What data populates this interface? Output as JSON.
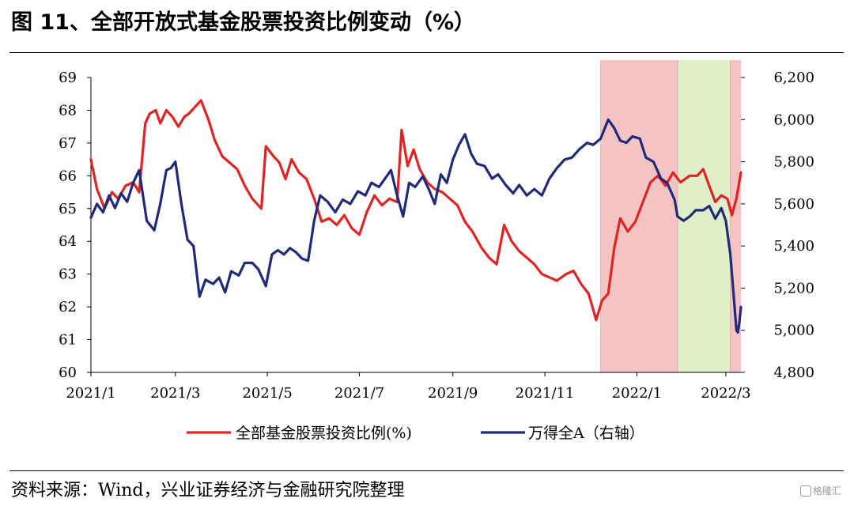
{
  "title": "图 11、全部开放式基金股票投资比例变动（%）",
  "source": "资料来源：Wind，兴业证券经济与金融研究院整理",
  "watermark": "格隆汇",
  "chart_data": {
    "type": "line",
    "x_tick_labels": [
      "2021/1",
      "2021/3",
      "2021/5",
      "2021/7",
      "2021/9",
      "2021/11",
      "2022/1",
      "2022/3"
    ],
    "x_tick_dates": [
      "2021-01-04",
      "2021-03-01",
      "2021-05-01",
      "2021-07-01",
      "2021-09-01",
      "2021-11-01",
      "2022-01-01",
      "2022-03-01"
    ],
    "x_range": [
      "2021-01-04",
      "2022-03-11"
    ],
    "y_left": {
      "min": 60,
      "max": 69,
      "step": 1,
      "ticks": [
        "60",
        "61",
        "62",
        "63",
        "64",
        "65",
        "66",
        "67",
        "68",
        "69"
      ]
    },
    "y_right": {
      "min": 4800,
      "max": 6200,
      "step": 200,
      "ticks": [
        "4,800",
        "5,000",
        "5,200",
        "5,400",
        "5,600",
        "5,800",
        "6,000",
        "6,200"
      ]
    },
    "shaded_periods": [
      {
        "start": "2021-12-08",
        "end": "2022-01-28",
        "color": "#f4c4c4"
      },
      {
        "start": "2022-01-28",
        "end": "2022-03-04",
        "color": "#dff0c8"
      },
      {
        "start": "2022-03-04",
        "end": "2022-03-11",
        "color": "#f4c4c4"
      }
    ],
    "series": [
      {
        "name": "全部基金股票投资比例(%)",
        "axis": "left",
        "color": "#e02424",
        "points": [
          [
            "2021-01-04",
            66.5
          ],
          [
            "2021-01-08",
            65.6
          ],
          [
            "2021-01-13",
            65.0
          ],
          [
            "2021-01-18",
            65.5
          ],
          [
            "2021-01-22",
            65.3
          ],
          [
            "2021-01-27",
            65.7
          ],
          [
            "2021-02-01",
            65.8
          ],
          [
            "2021-02-05",
            65.5
          ],
          [
            "2021-02-09",
            67.6
          ],
          [
            "2021-02-12",
            67.9
          ],
          [
            "2021-02-16",
            68.0
          ],
          [
            "2021-02-19",
            67.6
          ],
          [
            "2021-02-23",
            68.0
          ],
          [
            "2021-02-27",
            67.8
          ],
          [
            "2021-03-03",
            67.5
          ],
          [
            "2021-03-07",
            67.8
          ],
          [
            "2021-03-10",
            67.9
          ],
          [
            "2021-03-14",
            68.1
          ],
          [
            "2021-03-18",
            68.3
          ],
          [
            "2021-03-23",
            67.7
          ],
          [
            "2021-03-27",
            67.1
          ],
          [
            "2021-04-01",
            66.6
          ],
          [
            "2021-04-06",
            66.4
          ],
          [
            "2021-04-11",
            66.2
          ],
          [
            "2021-04-16",
            65.7
          ],
          [
            "2021-04-21",
            65.3
          ],
          [
            "2021-04-27",
            65.0
          ],
          [
            "2021-04-30",
            66.9
          ],
          [
            "2021-05-05",
            66.6
          ],
          [
            "2021-05-09",
            66.4
          ],
          [
            "2021-05-13",
            65.9
          ],
          [
            "2021-05-17",
            66.5
          ],
          [
            "2021-05-22",
            66.1
          ],
          [
            "2021-05-27",
            65.9
          ],
          [
            "2021-06-01",
            65.3
          ],
          [
            "2021-06-06",
            64.6
          ],
          [
            "2021-06-11",
            64.7
          ],
          [
            "2021-06-16",
            64.5
          ],
          [
            "2021-06-21",
            64.8
          ],
          [
            "2021-06-26",
            64.4
          ],
          [
            "2021-07-01",
            64.2
          ],
          [
            "2021-07-06",
            64.9
          ],
          [
            "2021-07-11",
            65.4
          ],
          [
            "2021-07-16",
            65.1
          ],
          [
            "2021-07-21",
            65.3
          ],
          [
            "2021-07-26",
            65.2
          ],
          [
            "2021-07-29",
            67.4
          ],
          [
            "2021-08-02",
            66.3
          ],
          [
            "2021-08-06",
            66.8
          ],
          [
            "2021-08-10",
            66.2
          ],
          [
            "2021-08-15",
            65.8
          ],
          [
            "2021-08-20",
            65.6
          ],
          [
            "2021-08-25",
            65.5
          ],
          [
            "2021-08-30",
            65.3
          ],
          [
            "2021-09-04",
            65.1
          ],
          [
            "2021-09-09",
            64.6
          ],
          [
            "2021-09-14",
            64.3
          ],
          [
            "2021-09-20",
            63.8
          ],
          [
            "2021-09-25",
            63.5
          ],
          [
            "2021-09-30",
            63.3
          ],
          [
            "2021-10-05",
            64.5
          ],
          [
            "2021-10-10",
            64.0
          ],
          [
            "2021-10-15",
            63.7
          ],
          [
            "2021-10-20",
            63.5
          ],
          [
            "2021-10-25",
            63.3
          ],
          [
            "2021-10-30",
            63.0
          ],
          [
            "2021-11-04",
            62.9
          ],
          [
            "2021-11-09",
            62.8
          ],
          [
            "2021-11-15",
            63.0
          ],
          [
            "2021-11-20",
            63.1
          ],
          [
            "2021-11-25",
            62.7
          ],
          [
            "2021-11-30",
            62.4
          ],
          [
            "2021-12-05",
            61.6
          ],
          [
            "2021-12-09",
            62.2
          ],
          [
            "2021-12-13",
            62.4
          ],
          [
            "2021-12-17",
            63.8
          ],
          [
            "2021-12-21",
            64.7
          ],
          [
            "2021-12-26",
            64.3
          ],
          [
            "2021-12-31",
            64.6
          ],
          [
            "2022-01-05",
            65.2
          ],
          [
            "2022-01-10",
            65.8
          ],
          [
            "2022-01-15",
            66.0
          ],
          [
            "2022-01-20",
            65.7
          ],
          [
            "2022-01-25",
            66.1
          ],
          [
            "2022-01-30",
            65.8
          ],
          [
            "2022-02-05",
            66.0
          ],
          [
            "2022-02-10",
            66.0
          ],
          [
            "2022-02-14",
            66.2
          ],
          [
            "2022-02-18",
            65.7
          ],
          [
            "2022-02-22",
            65.2
          ],
          [
            "2022-02-26",
            65.4
          ],
          [
            "2022-03-02",
            65.3
          ],
          [
            "2022-03-05",
            64.8
          ],
          [
            "2022-03-08",
            65.3
          ],
          [
            "2022-03-11",
            66.1
          ]
        ]
      },
      {
        "name": "万得全A（右轴）",
        "axis": "right",
        "color": "#1f2a7a",
        "points": [
          [
            "2021-01-04",
            5535
          ],
          [
            "2021-01-08",
            5600
          ],
          [
            "2021-01-12",
            5560
          ],
          [
            "2021-01-16",
            5640
          ],
          [
            "2021-01-20",
            5580
          ],
          [
            "2021-01-24",
            5650
          ],
          [
            "2021-01-28",
            5610
          ],
          [
            "2021-02-01",
            5700
          ],
          [
            "2021-02-05",
            5760
          ],
          [
            "2021-02-10",
            5520
          ],
          [
            "2021-02-15",
            5475
          ],
          [
            "2021-02-19",
            5600
          ],
          [
            "2021-02-23",
            5760
          ],
          [
            "2021-02-26",
            5770
          ],
          [
            "2021-03-01",
            5800
          ],
          [
            "2021-03-05",
            5600
          ],
          [
            "2021-03-09",
            5430
          ],
          [
            "2021-03-13",
            5400
          ],
          [
            "2021-03-17",
            5160
          ],
          [
            "2021-03-21",
            5240
          ],
          [
            "2021-03-26",
            5220
          ],
          [
            "2021-03-30",
            5250
          ],
          [
            "2021-04-03",
            5180
          ],
          [
            "2021-04-07",
            5280
          ],
          [
            "2021-04-12",
            5260
          ],
          [
            "2021-04-16",
            5320
          ],
          [
            "2021-04-21",
            5320
          ],
          [
            "2021-04-25",
            5290
          ],
          [
            "2021-04-30",
            5210
          ],
          [
            "2021-05-04",
            5360
          ],
          [
            "2021-05-08",
            5380
          ],
          [
            "2021-05-12",
            5360
          ],
          [
            "2021-05-16",
            5390
          ],
          [
            "2021-05-20",
            5370
          ],
          [
            "2021-05-24",
            5340
          ],
          [
            "2021-05-28",
            5330
          ],
          [
            "2021-06-01",
            5520
          ],
          [
            "2021-06-05",
            5640
          ],
          [
            "2021-06-10",
            5610
          ],
          [
            "2021-06-15",
            5560
          ],
          [
            "2021-06-20",
            5620
          ],
          [
            "2021-06-25",
            5600
          ],
          [
            "2021-06-30",
            5660
          ],
          [
            "2021-07-05",
            5640
          ],
          [
            "2021-07-09",
            5700
          ],
          [
            "2021-07-14",
            5680
          ],
          [
            "2021-07-18",
            5720
          ],
          [
            "2021-07-22",
            5760
          ],
          [
            "2021-07-26",
            5640
          ],
          [
            "2021-07-30",
            5540
          ],
          [
            "2021-08-03",
            5700
          ],
          [
            "2021-08-07",
            5680
          ],
          [
            "2021-08-12",
            5730
          ],
          [
            "2021-08-16",
            5670
          ],
          [
            "2021-08-20",
            5600
          ],
          [
            "2021-08-24",
            5740
          ],
          [
            "2021-08-28",
            5700
          ],
          [
            "2021-09-01",
            5810
          ],
          [
            "2021-09-05",
            5880
          ],
          [
            "2021-09-09",
            5930
          ],
          [
            "2021-09-13",
            5840
          ],
          [
            "2021-09-17",
            5790
          ],
          [
            "2021-09-22",
            5780
          ],
          [
            "2021-09-27",
            5720
          ],
          [
            "2021-10-01",
            5740
          ],
          [
            "2021-10-06",
            5690
          ],
          [
            "2021-10-11",
            5650
          ],
          [
            "2021-10-15",
            5690
          ],
          [
            "2021-10-20",
            5640
          ],
          [
            "2021-10-25",
            5670
          ],
          [
            "2021-10-30",
            5640
          ],
          [
            "2021-11-04",
            5720
          ],
          [
            "2021-11-09",
            5770
          ],
          [
            "2021-11-14",
            5810
          ],
          [
            "2021-11-19",
            5820
          ],
          [
            "2021-11-24",
            5860
          ],
          [
            "2021-11-29",
            5890
          ],
          [
            "2021-12-03",
            5880
          ],
          [
            "2021-12-08",
            5910
          ],
          [
            "2021-12-13",
            6000
          ],
          [
            "2021-12-17",
            5960
          ],
          [
            "2021-12-21",
            5900
          ],
          [
            "2021-12-25",
            5890
          ],
          [
            "2021-12-29",
            5920
          ],
          [
            "2022-01-03",
            5910
          ],
          [
            "2022-01-07",
            5820
          ],
          [
            "2022-01-12",
            5800
          ],
          [
            "2022-01-17",
            5720
          ],
          [
            "2022-01-21",
            5700
          ],
          [
            "2022-01-26",
            5620
          ],
          [
            "2022-01-28",
            5540
          ],
          [
            "2022-02-01",
            5520
          ],
          [
            "2022-02-05",
            5540
          ],
          [
            "2022-02-09",
            5570
          ],
          [
            "2022-02-14",
            5570
          ],
          [
            "2022-02-18",
            5590
          ],
          [
            "2022-02-22",
            5530
          ],
          [
            "2022-02-26",
            5580
          ],
          [
            "2022-03-01",
            5520
          ],
          [
            "2022-03-04",
            5360
          ],
          [
            "2022-03-06",
            5180
          ],
          [
            "2022-03-08",
            5000
          ],
          [
            "2022-03-09",
            4990
          ],
          [
            "2022-03-10",
            5040
          ],
          [
            "2022-03-11",
            5110
          ]
        ]
      }
    ]
  }
}
